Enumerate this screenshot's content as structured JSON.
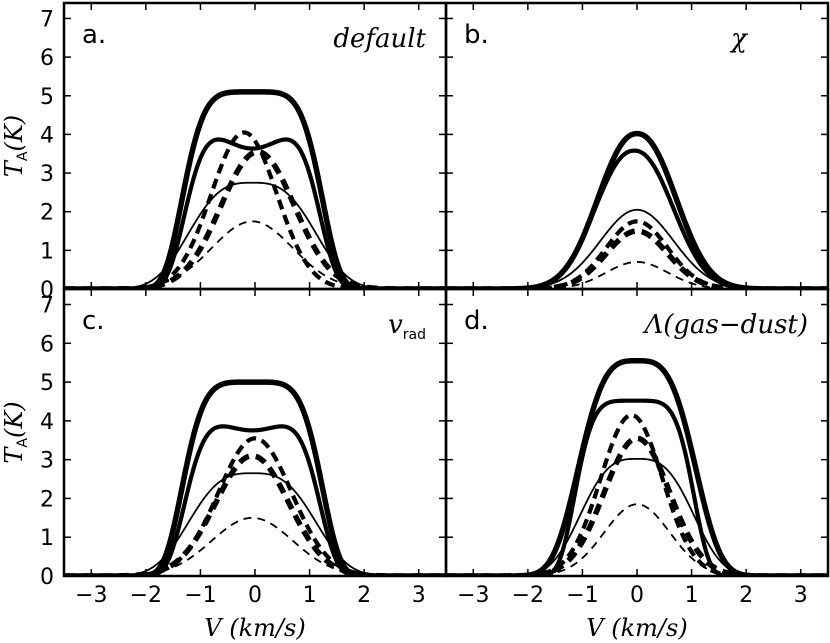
{
  "chart_data": {
    "type": "line",
    "layout": "2x2 grid, shared axes",
    "xlabel": {
      "symbol": "V",
      "unit": "(km/s)"
    },
    "ylabel": {
      "symbol": "T",
      "subscript": "A",
      "unit": "(K)"
    },
    "xlim": [
      -3.5,
      3.5
    ],
    "ylim": [
      0,
      7.4
    ],
    "xticks": [
      -3,
      -2,
      -1,
      0,
      1,
      2,
      3
    ],
    "yticks": [
      0,
      1,
      2,
      3,
      4,
      5,
      6,
      7
    ],
    "panels": [
      {
        "letter": "a.",
        "tag": "default",
        "series": [
          {
            "style": "solid",
            "weight": "thick",
            "peak": 5.1,
            "half_width": 1.35,
            "center": -0.05,
            "shape": 5
          },
          {
            "style": "solid",
            "weight": "medium",
            "peak": 3.98,
            "half_width": 1.3,
            "center": -0.05,
            "shape": 5,
            "dip": 0.35
          },
          {
            "style": "solid",
            "weight": "thin",
            "peak": 2.75,
            "half_width": 1.35,
            "center": -0.05,
            "shape": 3
          },
          {
            "style": "dashed",
            "weight": "thick",
            "peak": 3.55,
            "half_width": 0.95,
            "center": 0.05,
            "shape": 2
          },
          {
            "style": "dashed",
            "weight": "medium",
            "peak": 4.05,
            "half_width": 0.85,
            "center": -0.2,
            "shape": 2
          },
          {
            "style": "dashed",
            "weight": "thin",
            "peak": 1.75,
            "half_width": 1.05,
            "center": -0.05,
            "shape": 2
          }
        ]
      },
      {
        "letter": "b.",
        "tag": "χ",
        "series": [
          {
            "style": "solid",
            "weight": "thick",
            "peak": 4.02,
            "half_width": 0.95,
            "center": 0.0,
            "shape": 2.2
          },
          {
            "style": "solid",
            "weight": "medium",
            "peak": 3.58,
            "half_width": 0.95,
            "center": -0.05,
            "shape": 2.2
          },
          {
            "style": "solid",
            "weight": "thin",
            "peak": 2.05,
            "half_width": 0.95,
            "center": 0.0,
            "shape": 2
          },
          {
            "style": "dashed",
            "weight": "thick",
            "peak": 1.5,
            "half_width": 0.8,
            "center": 0.0,
            "shape": 2
          },
          {
            "style": "dashed",
            "weight": "medium",
            "peak": 1.75,
            "half_width": 0.8,
            "center": 0.0,
            "shape": 2
          },
          {
            "style": "dashed",
            "weight": "thin",
            "peak": 0.7,
            "half_width": 0.8,
            "center": 0.0,
            "shape": 2
          }
        ]
      },
      {
        "letter": "c.",
        "tag": "v",
        "tag_sub": "rad",
        "series": [
          {
            "style": "solid",
            "weight": "thick",
            "peak": 5.0,
            "half_width": 1.35,
            "center": -0.05,
            "shape": 5
          },
          {
            "style": "solid",
            "weight": "medium",
            "peak": 3.95,
            "half_width": 1.3,
            "center": -0.05,
            "shape": 5,
            "dip": 0.2
          },
          {
            "style": "solid",
            "weight": "thin",
            "peak": 2.65,
            "half_width": 1.35,
            "center": -0.05,
            "shape": 3
          },
          {
            "style": "dashed",
            "weight": "thick",
            "peak": 3.1,
            "half_width": 0.95,
            "center": -0.05,
            "shape": 2
          },
          {
            "style": "dashed",
            "weight": "medium",
            "peak": 3.55,
            "half_width": 0.95,
            "center": 0.0,
            "shape": 2
          },
          {
            "style": "dashed",
            "weight": "thin",
            "peak": 1.5,
            "half_width": 1.05,
            "center": -0.05,
            "shape": 2
          }
        ]
      },
      {
        "letter": "d.",
        "tag": "Λ(gas−dust)",
        "series": [
          {
            "style": "solid",
            "weight": "thick",
            "peak": 5.55,
            "half_width": 1.2,
            "center": 0.0,
            "shape": 3.4
          },
          {
            "style": "solid",
            "weight": "medium",
            "peak": 4.52,
            "half_width": 1.15,
            "center": -0.05,
            "shape": 5
          },
          {
            "style": "solid",
            "weight": "thin",
            "peak": 3.02,
            "half_width": 1.2,
            "center": 0.0,
            "shape": 3
          },
          {
            "style": "dashed",
            "weight": "thick",
            "peak": 3.55,
            "half_width": 0.85,
            "center": 0.0,
            "shape": 2
          },
          {
            "style": "dashed",
            "weight": "medium",
            "peak": 4.15,
            "half_width": 0.8,
            "center": -0.1,
            "shape": 2
          },
          {
            "style": "dashed",
            "weight": "thin",
            "peak": 1.85,
            "half_width": 0.85,
            "center": 0.0,
            "shape": 2
          }
        ]
      }
    ]
  }
}
